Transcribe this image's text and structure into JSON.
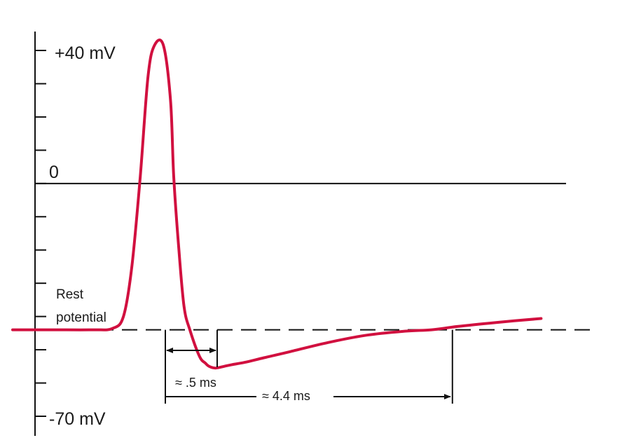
{
  "chart_data": {
    "type": "line",
    "title": "",
    "xlabel": "",
    "ylabel": "",
    "ylim": [
      -70,
      40
    ],
    "y_tick_values": [
      40,
      30,
      20,
      10,
      0,
      -10,
      -20,
      -30,
      -40,
      -50,
      -60,
      -70
    ],
    "y_tick_labels": [
      {
        "value": 40,
        "label": "+40 mV"
      },
      {
        "value": 0,
        "label": "0"
      },
      {
        "value": -70,
        "label": "-70 mV"
      }
    ],
    "reference_lines": [
      {
        "value": 0,
        "style": "solid"
      },
      {
        "value": -44,
        "style": "dashed",
        "label": "Rest potential",
        "label_lines": [
          "Rest",
          "potential"
        ]
      }
    ],
    "series": [
      {
        "color": "#d1103f",
        "x": [
          -2.5,
          -1.88,
          -1.25,
          -0.95,
          -0.78,
          -0.65,
          -0.52,
          -0.4,
          -0.3,
          -0.16,
          -0.05,
          0.0,
          0.08,
          0.16,
          0.25,
          0.4,
          0.49,
          0.55,
          0.65,
          0.78,
          0.9,
          1.1,
          1.4,
          1.8,
          2.4,
          3.0,
          3.6,
          4.0,
          4.4,
          5.0,
          5.7
        ],
        "y": [
          -44,
          -44,
          -44,
          -43.6,
          -40,
          -25,
          2,
          32,
          41.5,
          41.5,
          25,
          2,
          -20,
          -37,
          -44,
          -52,
          -54,
          -55,
          -55.5,
          -55,
          -54.5,
          -53.8,
          -52.4,
          -50.6,
          -47.8,
          -45.6,
          -44.4,
          -44,
          -43,
          -41.8,
          -40.6
        ]
      }
    ],
    "annotations": [
      {
        "text": "≈ .5 ms",
        "x_start": 0,
        "x_end": 0.5,
        "arrow": "double"
      },
      {
        "text": "≈ 4.4 ms",
        "x_start": 0,
        "x_end": 4.4,
        "arrow": "right"
      }
    ],
    "grid": false,
    "legend": "none"
  }
}
